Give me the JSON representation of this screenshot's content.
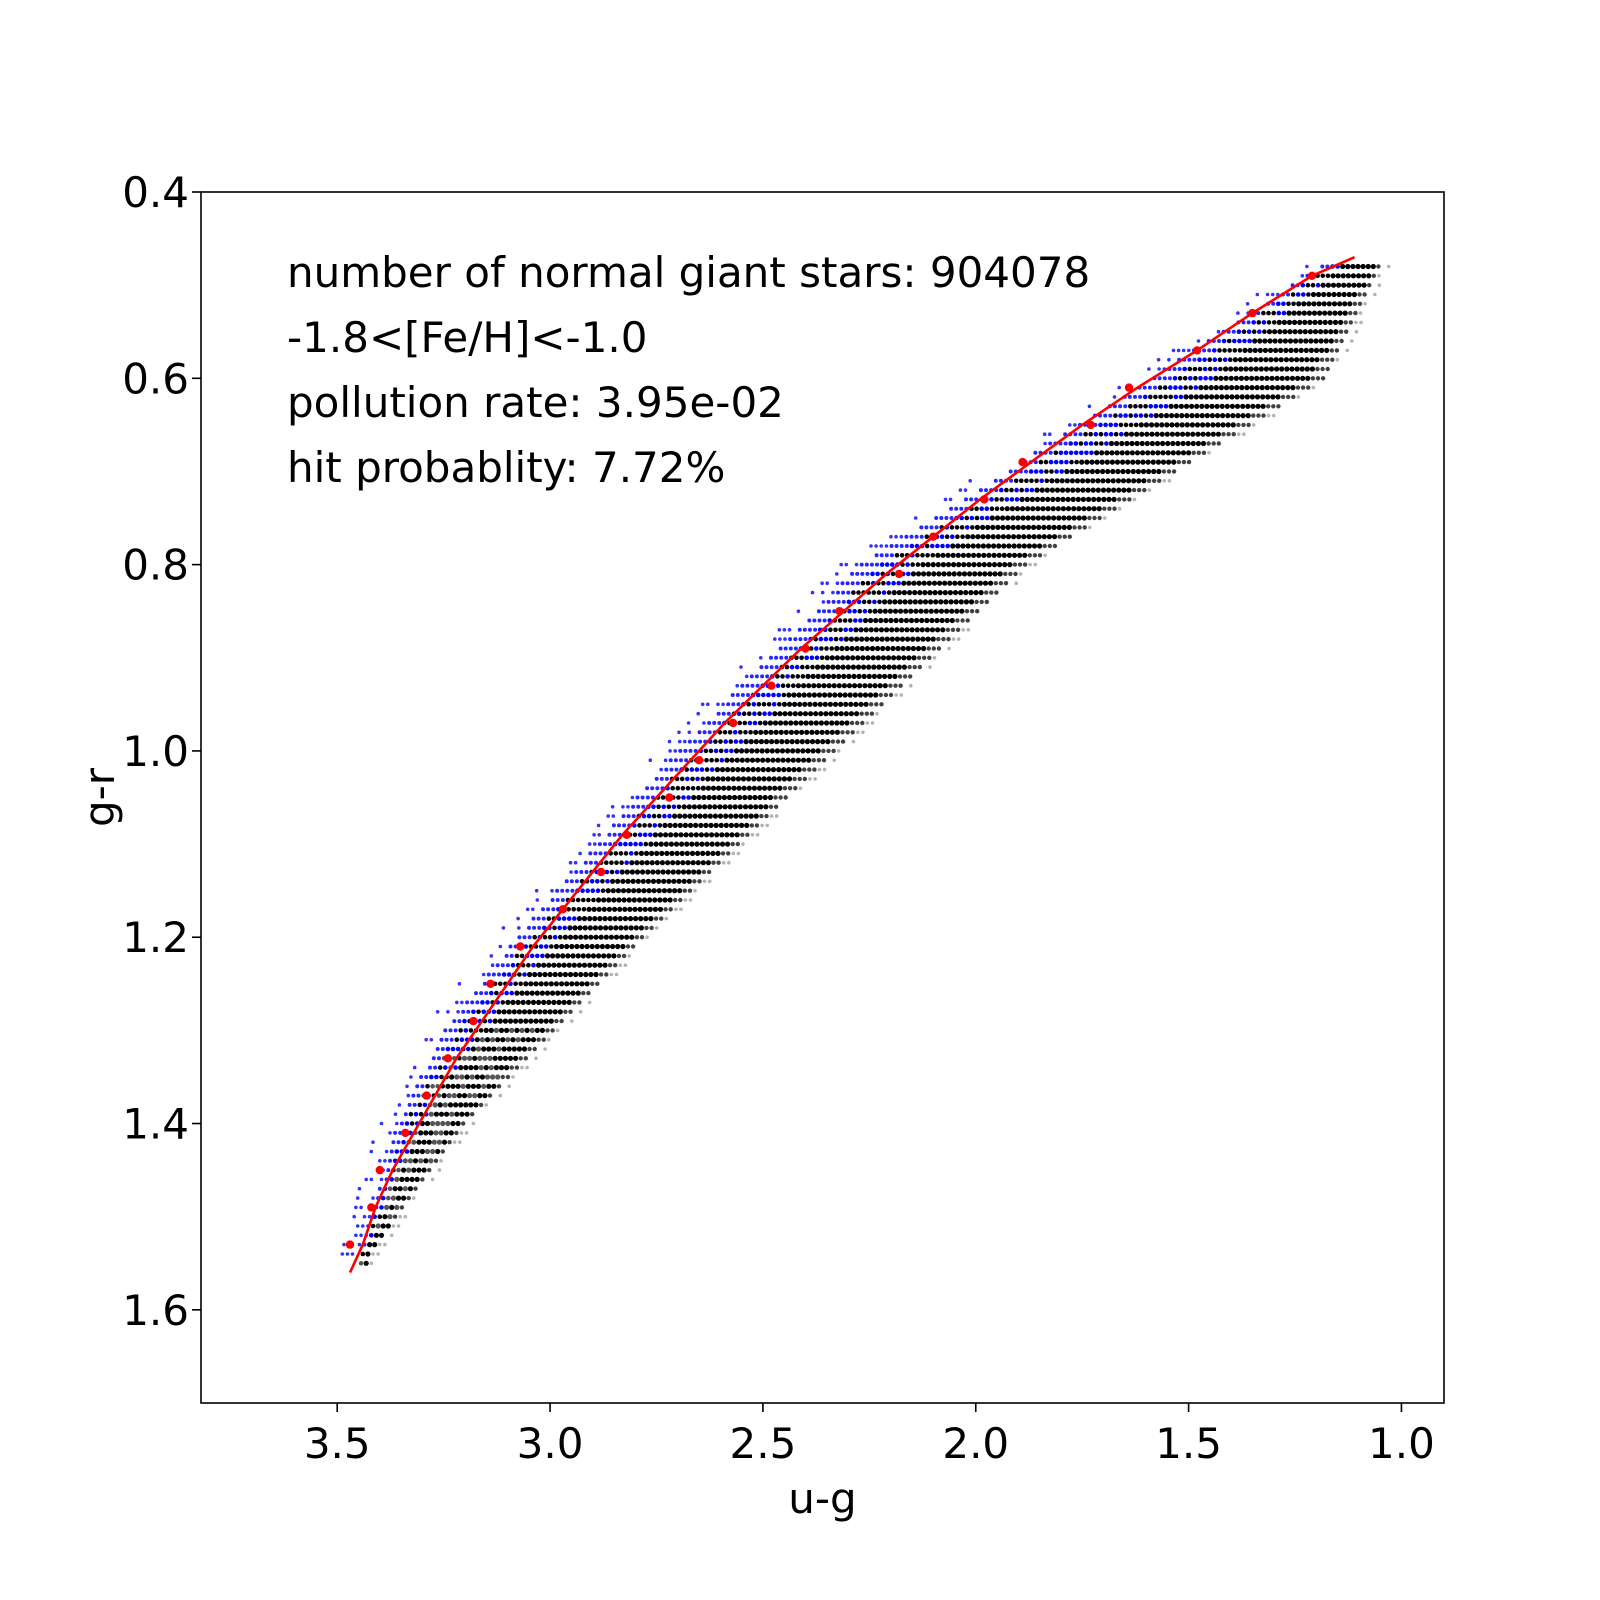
{
  "chart_data": {
    "type": "scatter",
    "xlabel": "u-g",
    "ylabel": "g-r",
    "xlim": [
      3.82,
      0.9
    ],
    "ylim": [
      1.7,
      0.4
    ],
    "x_inverted": true,
    "y_inverted": true,
    "xticks": [
      {
        "value": 3.5,
        "label": "3.5"
      },
      {
        "value": 3.0,
        "label": "3.0"
      },
      {
        "value": 2.5,
        "label": "2.5"
      },
      {
        "value": 2.0,
        "label": "2.0"
      },
      {
        "value": 1.5,
        "label": "1.5"
      },
      {
        "value": 1.0,
        "label": "1.0"
      }
    ],
    "yticks": [
      {
        "value": 0.4,
        "label": "0.4"
      },
      {
        "value": 0.6,
        "label": "0.6"
      },
      {
        "value": 0.8,
        "label": "0.8"
      },
      {
        "value": 1.0,
        "label": "1.0"
      },
      {
        "value": 1.2,
        "label": "1.2"
      },
      {
        "value": 1.4,
        "label": "1.4"
      },
      {
        "value": 1.6,
        "label": "1.6"
      }
    ],
    "annotations": [
      "number of normal giant stars: 904078",
      "-1.8<[Fe/H]<-1.0",
      "pollution rate: 3.95e-02",
      "hit probablity: 7.72%"
    ],
    "grid": false,
    "colors": {
      "fit_line": "#ff0000",
      "fit_points": "#ff0000",
      "metal_poor_stars": "#0000ff",
      "normal_stars": "#000000",
      "sparse_stars": "#a0a0a0"
    },
    "band": {
      "y_step": 0.01,
      "y_range": [
        0.48,
        1.55
      ],
      "blue_edge_knots": [
        [
          0.48,
          1.19
        ],
        [
          0.6,
          1.59
        ],
        [
          0.8,
          2.27
        ],
        [
          1.0,
          2.7
        ],
        [
          1.2,
          3.08
        ],
        [
          1.3,
          3.25
        ],
        [
          1.4,
          3.36
        ],
        [
          1.55,
          3.45
        ]
      ],
      "right_edge_knots": [
        [
          0.48,
          1.05
        ],
        [
          0.6,
          1.18
        ],
        [
          0.8,
          1.88
        ],
        [
          1.0,
          2.33
        ],
        [
          1.2,
          2.78
        ],
        [
          1.4,
          3.2
        ],
        [
          1.55,
          3.44
        ]
      ]
    },
    "fit_points": [
      [
        1.21,
        0.49
      ],
      [
        1.35,
        0.53
      ],
      [
        1.48,
        0.57
      ],
      [
        1.64,
        0.61
      ],
      [
        1.73,
        0.65
      ],
      [
        1.89,
        0.69
      ],
      [
        1.98,
        0.73
      ],
      [
        2.1,
        0.77
      ],
      [
        2.18,
        0.81
      ],
      [
        2.32,
        0.85
      ],
      [
        2.4,
        0.89
      ],
      [
        2.48,
        0.93
      ],
      [
        2.57,
        0.97
      ],
      [
        2.65,
        1.01
      ],
      [
        2.72,
        1.05
      ],
      [
        2.82,
        1.09
      ],
      [
        2.88,
        1.13
      ],
      [
        2.97,
        1.17
      ],
      [
        3.07,
        1.21
      ],
      [
        3.14,
        1.25
      ],
      [
        3.18,
        1.29
      ],
      [
        3.24,
        1.33
      ],
      [
        3.29,
        1.37
      ],
      [
        3.34,
        1.41
      ],
      [
        3.4,
        1.45
      ],
      [
        3.42,
        1.49
      ],
      [
        3.47,
        1.53
      ]
    ],
    "fit_curve": [
      [
        1.11,
        0.47
      ],
      [
        1.21,
        0.49
      ],
      [
        1.35,
        0.53
      ],
      [
        1.48,
        0.57
      ],
      [
        1.62,
        0.61
      ],
      [
        1.75,
        0.65
      ],
      [
        1.87,
        0.69
      ],
      [
        1.99,
        0.73
      ],
      [
        2.1,
        0.77
      ],
      [
        2.21,
        0.81
      ],
      [
        2.31,
        0.85
      ],
      [
        2.41,
        0.89
      ],
      [
        2.5,
        0.93
      ],
      [
        2.59,
        0.97
      ],
      [
        2.67,
        1.01
      ],
      [
        2.75,
        1.05
      ],
      [
        2.83,
        1.09
      ],
      [
        2.9,
        1.13
      ],
      [
        2.97,
        1.17
      ],
      [
        3.04,
        1.21
      ],
      [
        3.1,
        1.25
      ],
      [
        3.16,
        1.29
      ],
      [
        3.22,
        1.33
      ],
      [
        3.27,
        1.37
      ],
      [
        3.32,
        1.41
      ],
      [
        3.37,
        1.45
      ],
      [
        3.41,
        1.49
      ],
      [
        3.44,
        1.53
      ],
      [
        3.47,
        1.56
      ]
    ]
  }
}
